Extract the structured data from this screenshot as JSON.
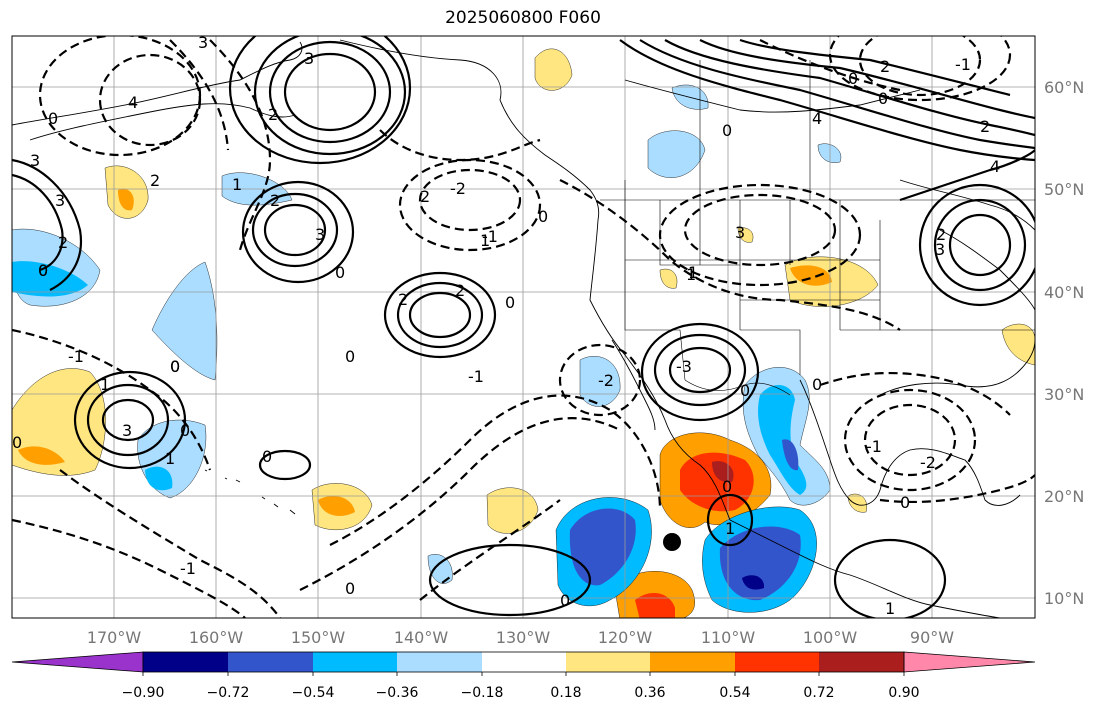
{
  "title": "2025060800 F060",
  "map": {
    "lat_labels": [
      "60°N",
      "50°N",
      "40°N",
      "30°N",
      "20°N",
      "10°N"
    ],
    "lon_labels": [
      "170°W",
      "160°W",
      "150°W",
      "140°W",
      "130°W",
      "120°W",
      "110°W",
      "100°W",
      "90°W"
    ],
    "contour_labels": [
      "3",
      "2",
      "4",
      "0",
      "3",
      "3",
      "2",
      "0",
      "3",
      "2",
      "1",
      "2",
      "3",
      "0",
      "2",
      "0",
      "0",
      "1",
      "2",
      "2",
      "0",
      "3",
      "0",
      "0",
      "1",
      "-1",
      "0",
      "1",
      "0",
      "1",
      "3",
      "4",
      "2",
      "0",
      "2",
      "0",
      "0",
      "0",
      "-2",
      "-1",
      "-2",
      "-1",
      "-3",
      "2",
      "4",
      "0",
      "3",
      "1",
      "-1",
      "-1",
      "0",
      "0",
      "-2",
      "-1",
      "0",
      "0",
      "1",
      "0",
      "1",
      "0"
    ],
    "marker": "center-point"
  },
  "colorbar": {
    "ticks": [
      "−0.90",
      "−0.72",
      "−0.54",
      "−0.36",
      "−0.18",
      "0.18",
      "0.36",
      "0.54",
      "0.72",
      "0.90"
    ],
    "colors": [
      "#9933cc",
      "#000088",
      "#3355cc",
      "#00bbff",
      "#aaddff",
      "#ffffff",
      "#ffe680",
      "#ffa000",
      "#ff3300",
      "#aa1e1e",
      "#ff88aa"
    ]
  }
}
